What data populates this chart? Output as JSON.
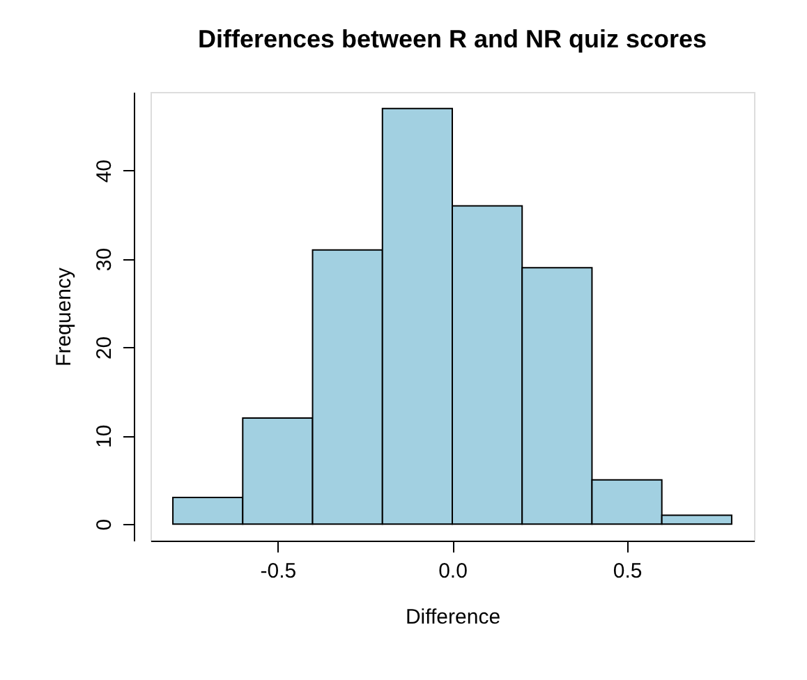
{
  "chart_data": {
    "type": "histogram",
    "title": "Differences between R and NR quiz scores",
    "xlabel": "Difference",
    "ylabel": "Frequency",
    "bins": [
      -0.8,
      -0.6,
      -0.4,
      -0.2,
      0.0,
      0.2,
      0.4,
      0.6,
      0.8
    ],
    "values": [
      3,
      12,
      31,
      47,
      36,
      29,
      5,
      1
    ],
    "color": "#a2d0e1",
    "xlim": [
      -0.864,
      0.864
    ],
    "ylim": [
      -1.88,
      48.88
    ],
    "xticks": [
      {
        "value": -0.5,
        "label": "-0.5"
      },
      {
        "value": 0,
        "label": "0.0"
      },
      {
        "value": 0.5,
        "label": "0.5"
      }
    ],
    "yticks": [
      0,
      10,
      20,
      30,
      40
    ],
    "grid": false
  }
}
